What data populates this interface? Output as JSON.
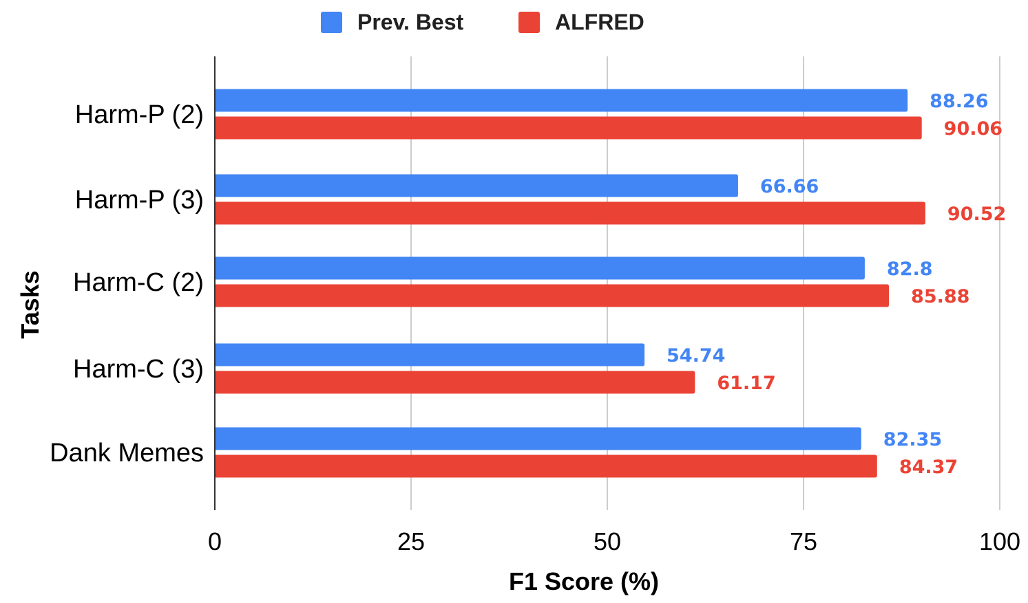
{
  "chart_data": {
    "type": "bar",
    "orientation": "horizontal",
    "categories": [
      "Harm-P (2)",
      "Harm-P (3)",
      "Harm-C (2)",
      "Harm-C (3)",
      "Dank Memes"
    ],
    "series": [
      {
        "name": "Prev. Best",
        "color": "#4285F4",
        "values": [
          88.26,
          66.66,
          82.8,
          54.74,
          82.35
        ],
        "labels": [
          "88.26",
          "66.66",
          "82.8",
          "54.74",
          "82.35"
        ]
      },
      {
        "name": "ALFRED",
        "color": "#EA4335",
        "values": [
          90.06,
          90.52,
          85.88,
          61.17,
          84.37
        ],
        "labels": [
          "90.06",
          "90.52",
          "85.88",
          "61.17",
          "84.37"
        ]
      }
    ],
    "xlabel": "F1 Score (%)",
    "ylabel": "Tasks",
    "xlim": [
      0,
      100
    ],
    "xticks": [
      "0",
      "25",
      "50",
      "75",
      "100"
    ],
    "grid": true,
    "legend_position": "top"
  }
}
